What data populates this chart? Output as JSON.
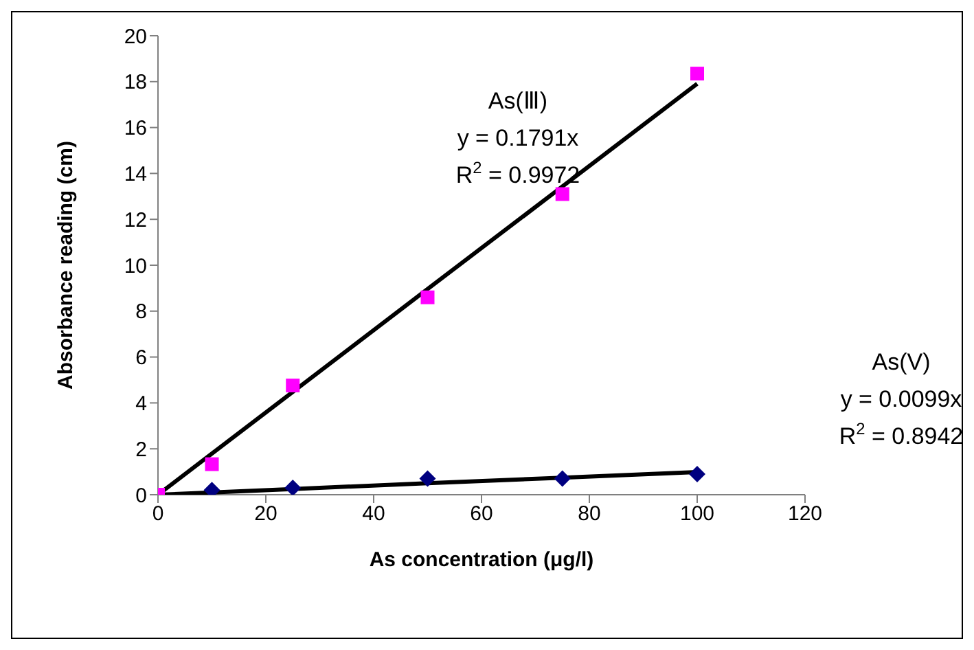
{
  "chart_data": {
    "type": "scatter",
    "xlabel": "As concentration (μg/l)",
    "ylabel": "Absorbance reading (cm)",
    "x": [
      0,
      10,
      25,
      50,
      75,
      100
    ],
    "series": [
      {
        "type": "scatter",
        "color": "#ff00ff",
        "marker": "square",
        "values": [
          0,
          1.33,
          4.76,
          8.6,
          13.1,
          18.35
        ]
      },
      {
        "type": "scatter",
        "color": "#000080",
        "marker": "diamond",
        "values": [
          null,
          0.2,
          0.3,
          0.7,
          0.7,
          0.9
        ]
      },
      {
        "type": "line",
        "color": "#000000",
        "x": [
          0,
          10,
          25,
          50,
          75,
          100
        ],
        "values": [
          0,
          1.79,
          4.48,
          8.96,
          13.43,
          17.91
        ]
      },
      {
        "type": "line",
        "color": "#000000",
        "x": [
          0,
          10,
          25,
          50,
          75,
          100
        ],
        "values": [
          0,
          0.1,
          0.25,
          0.5,
          0.74,
          0.99
        ]
      }
    ],
    "annotations": [
      "As(Ⅲ)",
      "y = 0.1791x",
      "R$^{2}$ = 0.9972",
      "As(V)",
      "y = 0.0099x",
      "R$^{2}$ = 0.8942"
    ],
    "xlim": [
      0,
      120
    ],
    "xticks": [
      0,
      20,
      40,
      60,
      80,
      100,
      120
    ],
    "ylim": [
      0,
      20
    ],
    "yticks": [
      0,
      2,
      4,
      6,
      8,
      10,
      12,
      14,
      16,
      18,
      20
    ],
    "grid": false,
    "legend": false
  }
}
